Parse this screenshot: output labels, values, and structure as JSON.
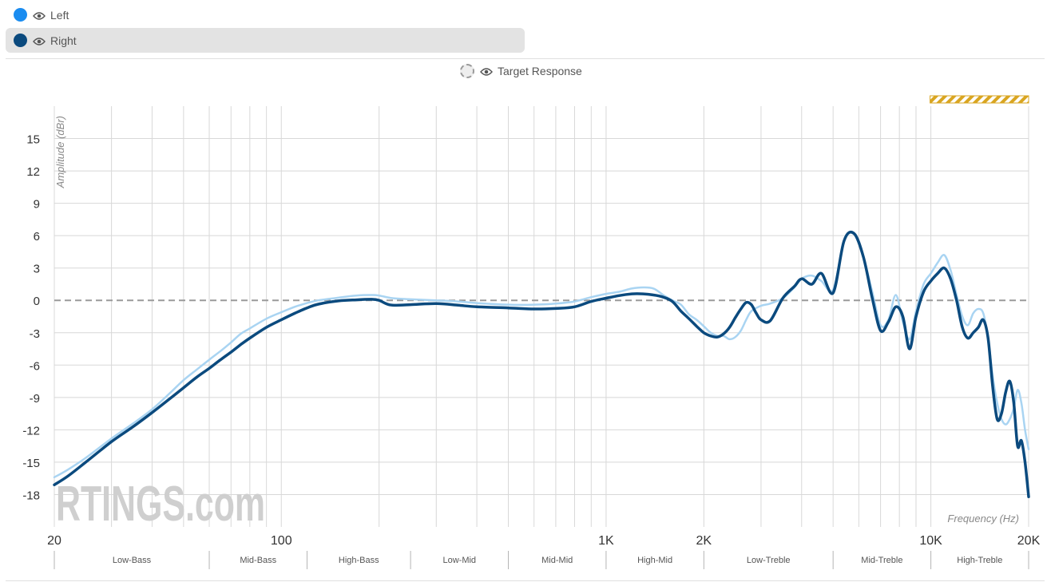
{
  "legend": {
    "items": [
      {
        "label": "Left",
        "color": "#1a8cf0"
      },
      {
        "label": "Right",
        "color": "#0b4a7e"
      }
    ],
    "target_label": "Target Response"
  },
  "watermark": "RTINGS.com",
  "chart_data": {
    "type": "line",
    "xlabel": "Frequency (Hz)",
    "ylabel": "Amplitude (dBr)",
    "x_scale": "log",
    "xlim": [
      20,
      20000
    ],
    "ylim": [
      -21,
      18
    ],
    "x_ticks": [
      {
        "value": 20,
        "label": "20"
      },
      {
        "value": 100,
        "label": "100"
      },
      {
        "value": 1000,
        "label": "1K"
      },
      {
        "value": 2000,
        "label": "2K"
      },
      {
        "value": 10000,
        "label": "10K"
      },
      {
        "value": 20000,
        "label": "20K"
      }
    ],
    "y_ticks": [
      15,
      12,
      9,
      6,
      3,
      0,
      -3,
      -6,
      -9,
      -12,
      -15,
      -18
    ],
    "reference_line": 0,
    "grid": true,
    "highlight_band": [
      10000,
      20000
    ],
    "bands": [
      {
        "label": "Low-Bass",
        "start": 20,
        "end": 60
      },
      {
        "label": "Mid-Bass",
        "start": 60,
        "end": 120
      },
      {
        "label": "High-Bass",
        "start": 120,
        "end": 250
      },
      {
        "label": "Low-Mid",
        "start": 250,
        "end": 500
      },
      {
        "label": "Mid-Mid",
        "start": 500,
        "end": 1000
      },
      {
        "label": "High-Mid",
        "start": 1000,
        "end": 2000
      },
      {
        "label": "Low-Treble",
        "start": 2000,
        "end": 5000
      },
      {
        "label": "Mid-Treble",
        "start": 5000,
        "end": 10000
      },
      {
        "label": "High-Treble",
        "start": 10000,
        "end": 20000
      }
    ],
    "series": [
      {
        "name": "Left",
        "color": "#a9d4f2",
        "width": 2.5,
        "points": [
          [
            20,
            -16.4
          ],
          [
            22,
            -15.7
          ],
          [
            25,
            -14.6
          ],
          [
            30,
            -12.8
          ],
          [
            35,
            -11.4
          ],
          [
            40,
            -10.1
          ],
          [
            45,
            -8.7
          ],
          [
            50,
            -7.4
          ],
          [
            55,
            -6.4
          ],
          [
            60,
            -5.5
          ],
          [
            65,
            -4.7
          ],
          [
            70,
            -3.9
          ],
          [
            75,
            -3.1
          ],
          [
            80,
            -2.6
          ],
          [
            90,
            -1.7
          ],
          [
            100,
            -1.1
          ],
          [
            110,
            -0.6
          ],
          [
            120,
            -0.25
          ],
          [
            130,
            0.0
          ],
          [
            150,
            0.25
          ],
          [
            170,
            0.45
          ],
          [
            190,
            0.5
          ],
          [
            200,
            0.45
          ],
          [
            220,
            0.2
          ],
          [
            250,
            0.1
          ],
          [
            300,
            0.0
          ],
          [
            350,
            -0.1
          ],
          [
            400,
            -0.25
          ],
          [
            500,
            -0.4
          ],
          [
            600,
            -0.4
          ],
          [
            700,
            -0.3
          ],
          [
            800,
            -0.1
          ],
          [
            900,
            0.3
          ],
          [
            1000,
            0.6
          ],
          [
            1100,
            0.8
          ],
          [
            1200,
            1.1
          ],
          [
            1300,
            1.2
          ],
          [
            1400,
            1.1
          ],
          [
            1500,
            0.5
          ],
          [
            1600,
            0.0
          ],
          [
            1700,
            -0.4
          ],
          [
            1800,
            -1.3
          ],
          [
            1900,
            -1.8
          ],
          [
            2000,
            -2.4
          ],
          [
            2100,
            -3.0
          ],
          [
            2200,
            -3.3
          ],
          [
            2300,
            -3.3
          ],
          [
            2400,
            -3.6
          ],
          [
            2500,
            -3.4
          ],
          [
            2600,
            -2.8
          ],
          [
            2700,
            -1.8
          ],
          [
            2800,
            -1.0
          ],
          [
            3000,
            -0.5
          ],
          [
            3200,
            -0.3
          ],
          [
            3500,
            0.2
          ],
          [
            3800,
            1.2
          ],
          [
            4000,
            2.0
          ],
          [
            4300,
            2.3
          ],
          [
            4600,
            1.8
          ],
          [
            5000,
            1.0
          ],
          [
            5400,
            5.5
          ],
          [
            5800,
            6.2
          ],
          [
            6200,
            4.0
          ],
          [
            6600,
            0.8
          ],
          [
            7000,
            -2.3
          ],
          [
            7400,
            -1.8
          ],
          [
            7800,
            0.5
          ],
          [
            8200,
            -2.0
          ],
          [
            8600,
            -3.6
          ],
          [
            9000,
            -1.0
          ],
          [
            9500,
            1.5
          ],
          [
            10000,
            2.5
          ],
          [
            10500,
            3.5
          ],
          [
            11000,
            4.2
          ],
          [
            11500,
            2.8
          ],
          [
            12000,
            0.5
          ],
          [
            12500,
            -1.5
          ],
          [
            13000,
            -2.3
          ],
          [
            13500,
            -1.2
          ],
          [
            14000,
            -0.8
          ],
          [
            14500,
            -1.2
          ],
          [
            15000,
            -3.5
          ],
          [
            15500,
            -7.0
          ],
          [
            16000,
            -9.5
          ],
          [
            16500,
            -11.0
          ],
          [
            17000,
            -11.5
          ],
          [
            17500,
            -11.0
          ],
          [
            18000,
            -10.0
          ],
          [
            18500,
            -8.3
          ],
          [
            19000,
            -9.5
          ],
          [
            19500,
            -12.0
          ],
          [
            20000,
            -13.8
          ]
        ]
      },
      {
        "name": "Right",
        "color": "#0b4a7e",
        "width": 3.5,
        "points": [
          [
            20,
            -17.1
          ],
          [
            22,
            -16.3
          ],
          [
            25,
            -15.0
          ],
          [
            30,
            -13.1
          ],
          [
            35,
            -11.7
          ],
          [
            40,
            -10.4
          ],
          [
            45,
            -9.2
          ],
          [
            50,
            -8.1
          ],
          [
            55,
            -7.1
          ],
          [
            60,
            -6.3
          ],
          [
            65,
            -5.5
          ],
          [
            70,
            -4.8
          ],
          [
            75,
            -4.1
          ],
          [
            80,
            -3.5
          ],
          [
            90,
            -2.5
          ],
          [
            100,
            -1.8
          ],
          [
            110,
            -1.2
          ],
          [
            120,
            -0.7
          ],
          [
            130,
            -0.35
          ],
          [
            150,
            -0.05
          ],
          [
            170,
            0.05
          ],
          [
            190,
            0.1
          ],
          [
            200,
            0.0
          ],
          [
            210,
            -0.3
          ],
          [
            220,
            -0.45
          ],
          [
            250,
            -0.4
          ],
          [
            300,
            -0.3
          ],
          [
            350,
            -0.45
          ],
          [
            400,
            -0.6
          ],
          [
            500,
            -0.7
          ],
          [
            600,
            -0.8
          ],
          [
            700,
            -0.75
          ],
          [
            800,
            -0.6
          ],
          [
            900,
            -0.1
          ],
          [
            1000,
            0.2
          ],
          [
            1100,
            0.45
          ],
          [
            1200,
            0.6
          ],
          [
            1300,
            0.6
          ],
          [
            1400,
            0.5
          ],
          [
            1500,
            0.3
          ],
          [
            1600,
            -0.1
          ],
          [
            1700,
            -1.0
          ],
          [
            1800,
            -1.7
          ],
          [
            1900,
            -2.4
          ],
          [
            2000,
            -3.0
          ],
          [
            2100,
            -3.3
          ],
          [
            2200,
            -3.4
          ],
          [
            2300,
            -3.1
          ],
          [
            2400,
            -2.5
          ],
          [
            2500,
            -1.6
          ],
          [
            2600,
            -0.8
          ],
          [
            2700,
            -0.2
          ],
          [
            2800,
            -0.4
          ],
          [
            2900,
            -1.2
          ],
          [
            3000,
            -1.8
          ],
          [
            3200,
            -1.9
          ],
          [
            3500,
            0.2
          ],
          [
            3800,
            1.3
          ],
          [
            4000,
            2.0
          ],
          [
            4300,
            1.5
          ],
          [
            4600,
            2.5
          ],
          [
            5000,
            0.7
          ],
          [
            5400,
            5.5
          ],
          [
            5800,
            6.2
          ],
          [
            6200,
            4.0
          ],
          [
            6600,
            0.2
          ],
          [
            7000,
            -2.8
          ],
          [
            7400,
            -2.0
          ],
          [
            7800,
            -0.6
          ],
          [
            8200,
            -1.5
          ],
          [
            8600,
            -4.5
          ],
          [
            9000,
            -1.5
          ],
          [
            9500,
            0.8
          ],
          [
            10000,
            1.8
          ],
          [
            10500,
            2.5
          ],
          [
            11000,
            3.0
          ],
          [
            11500,
            2.0
          ],
          [
            12000,
            0.0
          ],
          [
            12500,
            -2.5
          ],
          [
            13000,
            -3.5
          ],
          [
            13500,
            -3.0
          ],
          [
            14000,
            -2.5
          ],
          [
            14500,
            -1.8
          ],
          [
            15000,
            -3.5
          ],
          [
            15500,
            -8.0
          ],
          [
            16000,
            -11.0
          ],
          [
            16500,
            -10.5
          ],
          [
            17000,
            -8.5
          ],
          [
            17500,
            -7.5
          ],
          [
            18000,
            -9.5
          ],
          [
            18500,
            -13.5
          ],
          [
            19000,
            -13.0
          ],
          [
            19500,
            -15.0
          ],
          [
            20000,
            -18.2
          ]
        ]
      }
    ]
  }
}
